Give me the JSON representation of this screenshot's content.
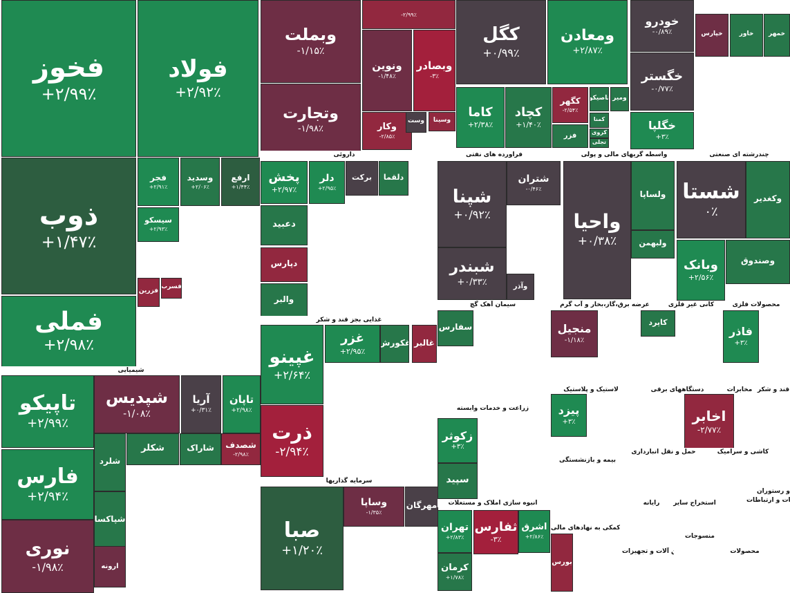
{
  "colors": {
    "strong_up": "#1e7e4a",
    "up": "#1f8a52",
    "mid_up": "#27774a",
    "neutral": "#4a4048",
    "mid_down": "#6e2e45",
    "down": "#92283f",
    "strong_down": "#a3203c",
    "flat_green": "#2d5d40"
  },
  "chart_data": {
    "type": "treemap",
    "title": "",
    "tiles": [
      {
        "name": "فخوز",
        "change": "+۲/۹۹٪",
        "color": "up"
      },
      {
        "name": "فولاد",
        "change": "+۲/۹۲٪",
        "color": "up"
      },
      {
        "name": "وبملت",
        "change": "-۱/۱۵٪",
        "color": "mid_down"
      },
      {
        "name": "",
        "change": "-۲/۹۹٪",
        "color": "down"
      },
      {
        "name": "وتجارت",
        "change": "-۱/۹۸٪",
        "color": "mid_down"
      },
      {
        "name": "ونوین",
        "change": "-۱/۴۸٪",
        "color": "mid_down"
      },
      {
        "name": "وبصادر",
        "change": "-۳٪",
        "color": "strong_down"
      },
      {
        "name": "وکار",
        "change": "-۲/۸۵٪",
        "color": "down"
      },
      {
        "name": "وست",
        "change": "",
        "color": "neutral"
      },
      {
        "name": "وسینا",
        "change": "",
        "color": "down"
      },
      {
        "name": "کگل",
        "change": "+۰/۹۹٪",
        "color": "neutral"
      },
      {
        "name": "ومعادن",
        "change": "+۲/۸۷٪",
        "color": "up"
      },
      {
        "name": "کاما",
        "change": "+۲/۳۸٪",
        "color": "up"
      },
      {
        "name": "کچاد",
        "change": "+۱/۴۰٪",
        "color": "mid_up"
      },
      {
        "name": "کگهر",
        "change": "-۲/۵۴٪",
        "color": "down"
      },
      {
        "name": "فزر",
        "change": "",
        "color": "mid_up"
      },
      {
        "name": "تاصیکو",
        "change": "",
        "color": "mid_up"
      },
      {
        "name": "ومیر",
        "change": "",
        "color": "mid_up"
      },
      {
        "name": "کمنا",
        "change": "",
        "color": "mid_up"
      },
      {
        "name": "کروی",
        "change": "",
        "color": "mid_up"
      },
      {
        "name": "تجلی",
        "change": "",
        "color": "mid_up"
      },
      {
        "name": "خودرو",
        "change": "-۰/۸۹٪",
        "color": "neutral"
      },
      {
        "name": "خگستر",
        "change": "-۰/۷۷٪",
        "color": "neutral"
      },
      {
        "name": "خگلپا",
        "change": "+۳٪",
        "color": "up"
      },
      {
        "name": "خپارس",
        "change": "",
        "color": "mid_down"
      },
      {
        "name": "خاور",
        "change": "",
        "color": "mid_up"
      },
      {
        "name": "خمهر",
        "change": "",
        "color": "mid_up"
      },
      {
        "name": "ذوب",
        "change": "+۱/۴۷٪",
        "color": "flat_green"
      },
      {
        "name": "فملی",
        "change": "+۲/۹۸٪",
        "color": "up"
      },
      {
        "name": "فجر",
        "change": "+۲/۹۱٪",
        "color": "up"
      },
      {
        "name": "وسدید",
        "change": "+۲/۰۶٪",
        "color": "mid_up"
      },
      {
        "name": "ارفع",
        "change": "+۱/۴۴٪",
        "color": "flat_green"
      },
      {
        "name": "سیسکو",
        "change": "+۲/۹۳٪",
        "color": "up"
      },
      {
        "name": "فسرب",
        "change": "",
        "color": "down"
      },
      {
        "name": "فزرین",
        "change": "",
        "color": "down"
      },
      {
        "name": "تاپیکو",
        "change": "+۲/۹۹٪",
        "color": "up"
      },
      {
        "name": "شپدیس",
        "change": "-۱/۰۸٪",
        "color": "mid_down"
      },
      {
        "name": "آریا",
        "change": "+۰/۳۱٪",
        "color": "neutral"
      },
      {
        "name": "تاپان",
        "change": "+۲/۹۸٪",
        "color": "up"
      },
      {
        "name": "فارس",
        "change": "+۲/۹۴٪",
        "color": "up"
      },
      {
        "name": "نوری",
        "change": "-۱/۹۸٪",
        "color": "mid_down"
      },
      {
        "name": "شکلر",
        "change": "",
        "color": "mid_up"
      },
      {
        "name": "شلرد",
        "change": "",
        "color": "mid_up"
      },
      {
        "name": "شاراک",
        "change": "",
        "color": "mid_up"
      },
      {
        "name": "شصدف",
        "change": "-۲/۹۸٪",
        "color": "down"
      },
      {
        "name": "شپاکسا",
        "change": "",
        "color": "mid_up"
      },
      {
        "name": "ارونه",
        "change": "",
        "color": "mid_down"
      },
      {
        "name": "پخش",
        "change": "+۲/۹۷٪",
        "color": "up"
      },
      {
        "name": "دلر",
        "change": "+۲/۹۵٪",
        "color": "up"
      },
      {
        "name": "برکت",
        "change": "",
        "color": "neutral"
      },
      {
        "name": "دلقما",
        "change": "",
        "color": "mid_up"
      },
      {
        "name": "دعبید",
        "change": "",
        "color": "mid_up"
      },
      {
        "name": "دپارس",
        "change": "",
        "color": "down"
      },
      {
        "name": "والبر",
        "change": "",
        "color": "mid_up"
      },
      {
        "name": "شپنا",
        "change": "+۰/۹۲٪",
        "color": "neutral"
      },
      {
        "name": "شتران",
        "change": "-۰/۴۶٪",
        "color": "neutral"
      },
      {
        "name": "شبندر",
        "change": "+۰/۳۳٪",
        "color": "neutral"
      },
      {
        "name": "وآذر",
        "change": "",
        "color": "neutral"
      },
      {
        "name": "واحیا",
        "change": "+۰/۳۸٪",
        "color": "neutral"
      },
      {
        "name": "شستا",
        "change": "۰٪",
        "color": "neutral"
      },
      {
        "name": "ولساپا",
        "change": "",
        "color": "mid_up"
      },
      {
        "name": "وکغدیر",
        "change": "",
        "color": "mid_up"
      },
      {
        "name": "ولبهمن",
        "change": "",
        "color": "mid_up"
      },
      {
        "name": "وبانک",
        "change": "+۲/۵۶٪",
        "color": "up"
      },
      {
        "name": "وصندوق",
        "change": "",
        "color": "mid_up"
      },
      {
        "name": "غپینو",
        "change": "+۲/۶۴٪",
        "color": "up"
      },
      {
        "name": "غزر",
        "change": "+۲/۹۵٪",
        "color": "up"
      },
      {
        "name": "غکورش",
        "change": "",
        "color": "mid_up"
      },
      {
        "name": "غالبر",
        "change": "",
        "color": "down"
      },
      {
        "name": "ذرت",
        "change": "-۲/۹۴٪",
        "color": "strong_down"
      },
      {
        "name": "صبا",
        "change": "+۱/۲۰٪",
        "color": "flat_green"
      },
      {
        "name": "وساپا",
        "change": "-۱/۳۵٪",
        "color": "mid_down"
      },
      {
        "name": "مهرگان",
        "change": "",
        "color": "neutral"
      },
      {
        "name": "سفارس",
        "change": "",
        "color": "mid_up"
      },
      {
        "name": "منجیل",
        "change": "-۱/۱۸٪",
        "color": "mid_down"
      },
      {
        "name": "فاذر",
        "change": "+۳٪",
        "color": "up"
      },
      {
        "name": "کاپرد",
        "change": "",
        "color": "mid_up"
      },
      {
        "name": "زکوثر",
        "change": "+۳٪",
        "color": "up"
      },
      {
        "name": "سپید",
        "change": "",
        "color": "mid_up"
      },
      {
        "name": "پیزد",
        "change": "+۳٪",
        "color": "up"
      },
      {
        "name": "اخابر",
        "change": "-۲/۷۷٪",
        "color": "down"
      },
      {
        "name": "ثفارس",
        "change": "-۳٪",
        "color": "strong_down"
      },
      {
        "name": "تهران",
        "change": "+۲/۸۳٪",
        "color": "up"
      },
      {
        "name": "کرمان",
        "change": "+۱/۷۸٪",
        "color": "mid_up"
      },
      {
        "name": "اشرق",
        "change": "+۲/۸۶٪",
        "color": "up"
      },
      {
        "name": "بورس",
        "change": "",
        "color": "down"
      }
    ],
    "sectors": [
      "داروئی",
      "فراورده های نفتی",
      "واسطه گریهای مالی و پولی",
      "چندرشته ای صنعتی",
      "شیمیایی",
      "غذایی بجز قند و شکر",
      "سیمان آهک گچ",
      "عرضه برق،گاز،بخار و آب گرم",
      "کانی غیر فلزی",
      "محصولات فلزی",
      "سرمایه گذاریها",
      "زراعت و خدمات وابسته",
      "لاستیک و پلاستیک",
      "دستگاههای برقی",
      "مخابرات",
      "قند و شکر",
      "انبوه سازی املاک و مستغلات",
      "بیمه و بازنشستگی",
      "حمل و نقل انبارداری",
      "کاشی و سرامیک",
      "فعالیتهای کمکی به نهادهای مالی",
      "رایانه",
      "استخراج سایر",
      "ماشین آلات و تجهیزات",
      "منسوجات",
      "محصولات",
      "اطلاعات و ارتباطات",
      "هتل و رستوران"
    ]
  }
}
